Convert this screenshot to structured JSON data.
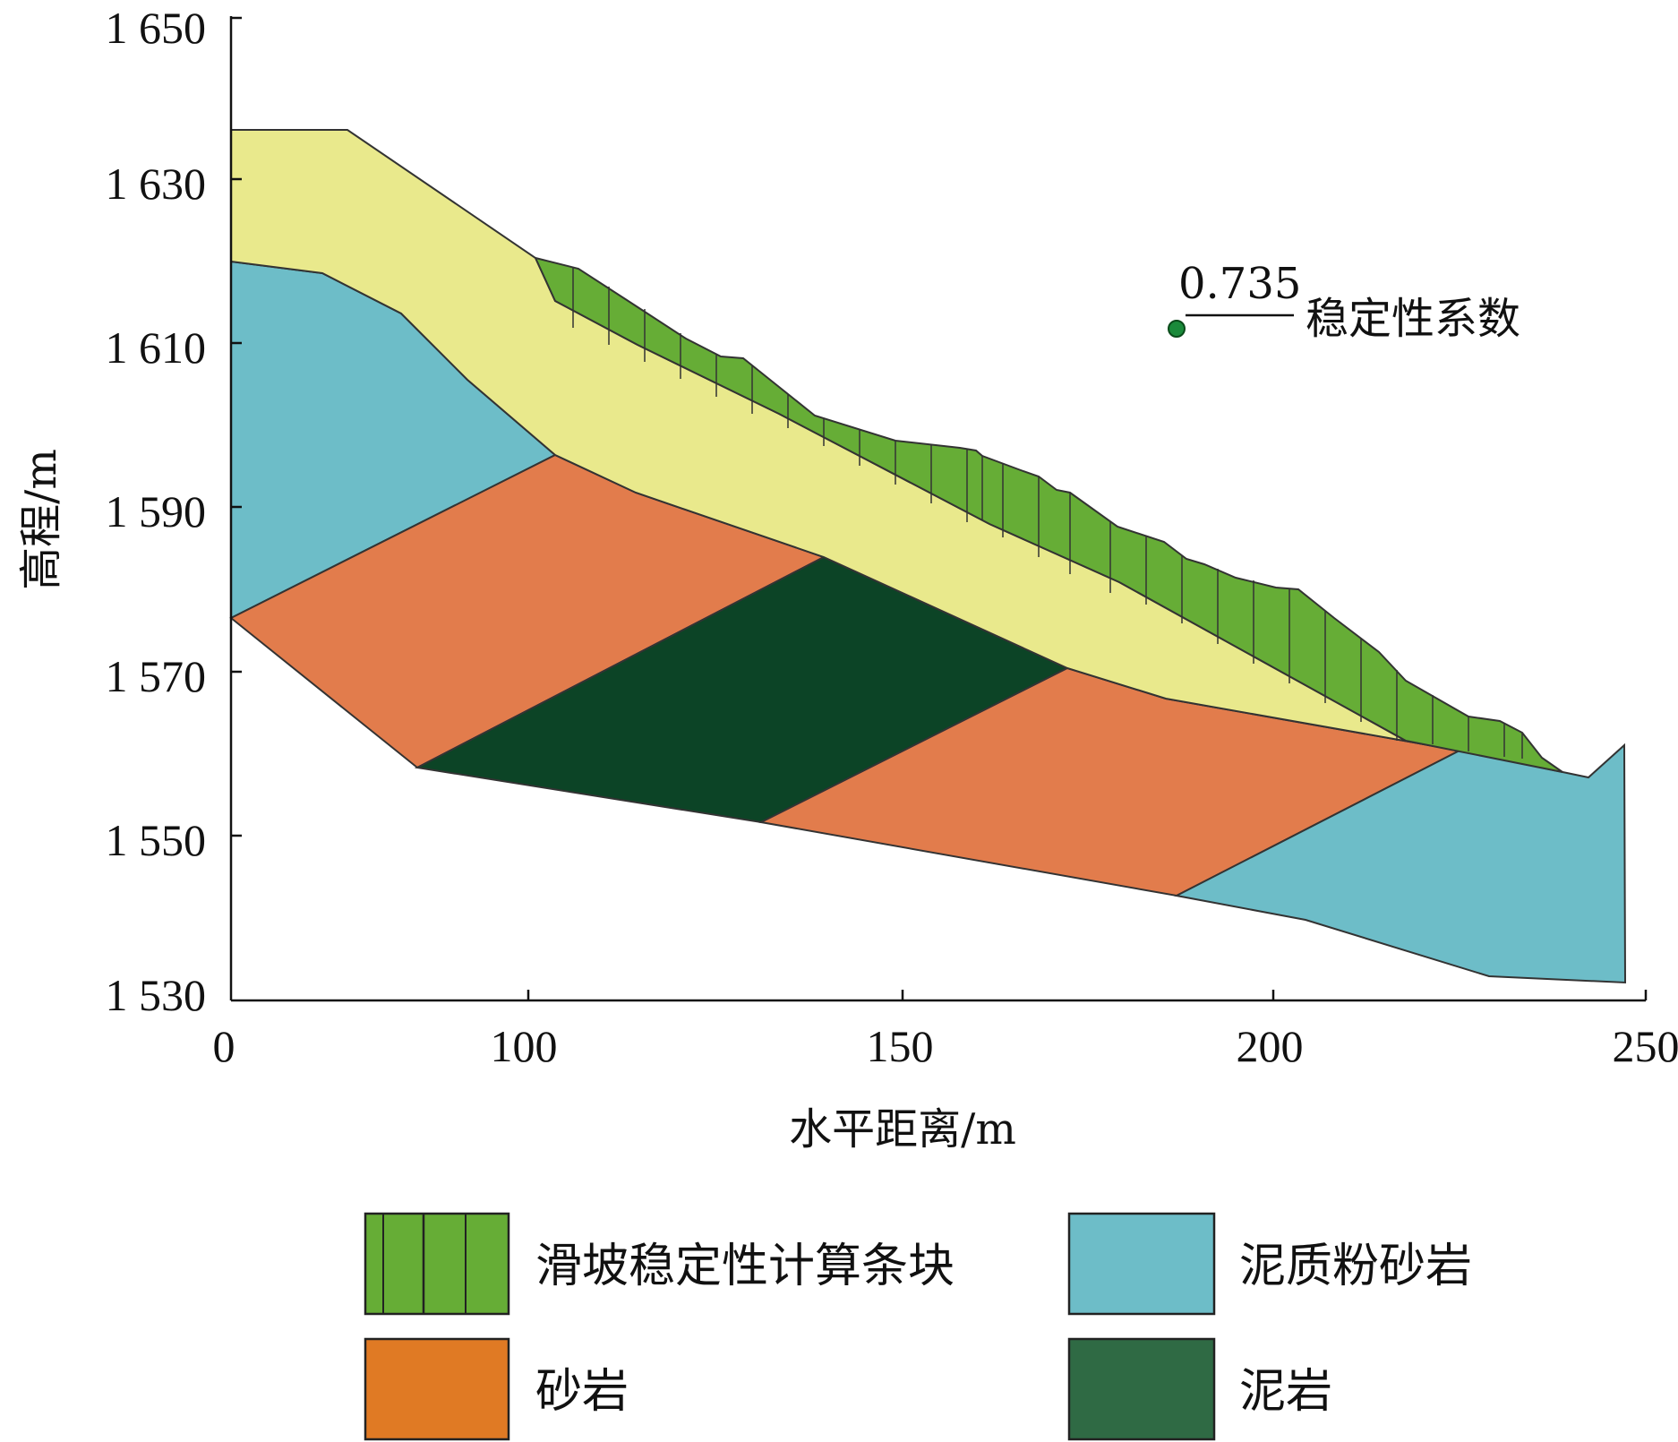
{
  "figure": {
    "xlabel": "水平距离/m",
    "ylabel": "高程/m",
    "x_ticks": [
      "0",
      "100",
      "150",
      "200",
      "250"
    ],
    "y_ticks": [
      "1 650",
      "1 630",
      "1 610",
      "1 590",
      "1 570",
      "1 550",
      "1 530"
    ],
    "annotation": {
      "value": "0.735",
      "label": "稳定性系数"
    }
  },
  "colors": {
    "slice_green": "#66ad36",
    "yellow": "#e9e98c",
    "blue": "#6dbdc8",
    "orange": "#e27c4c",
    "dark_green": "#0c4426",
    "legend_orange": "#e07a24",
    "legend_dark_green": "#2f6a44",
    "outline": "#333333"
  },
  "legend": [
    {
      "label": "滑坡稳定性计算条块",
      "color": "#66ad36",
      "pattern": "slices"
    },
    {
      "label": "泥质粉砂岩",
      "color": "#6dbdc8",
      "pattern": "solid"
    },
    {
      "label": "砂岩",
      "color": "#e07a24",
      "pattern": "solid"
    },
    {
      "label": "泥岩",
      "color": "#2f6a44",
      "pattern": "solid"
    }
  ]
}
